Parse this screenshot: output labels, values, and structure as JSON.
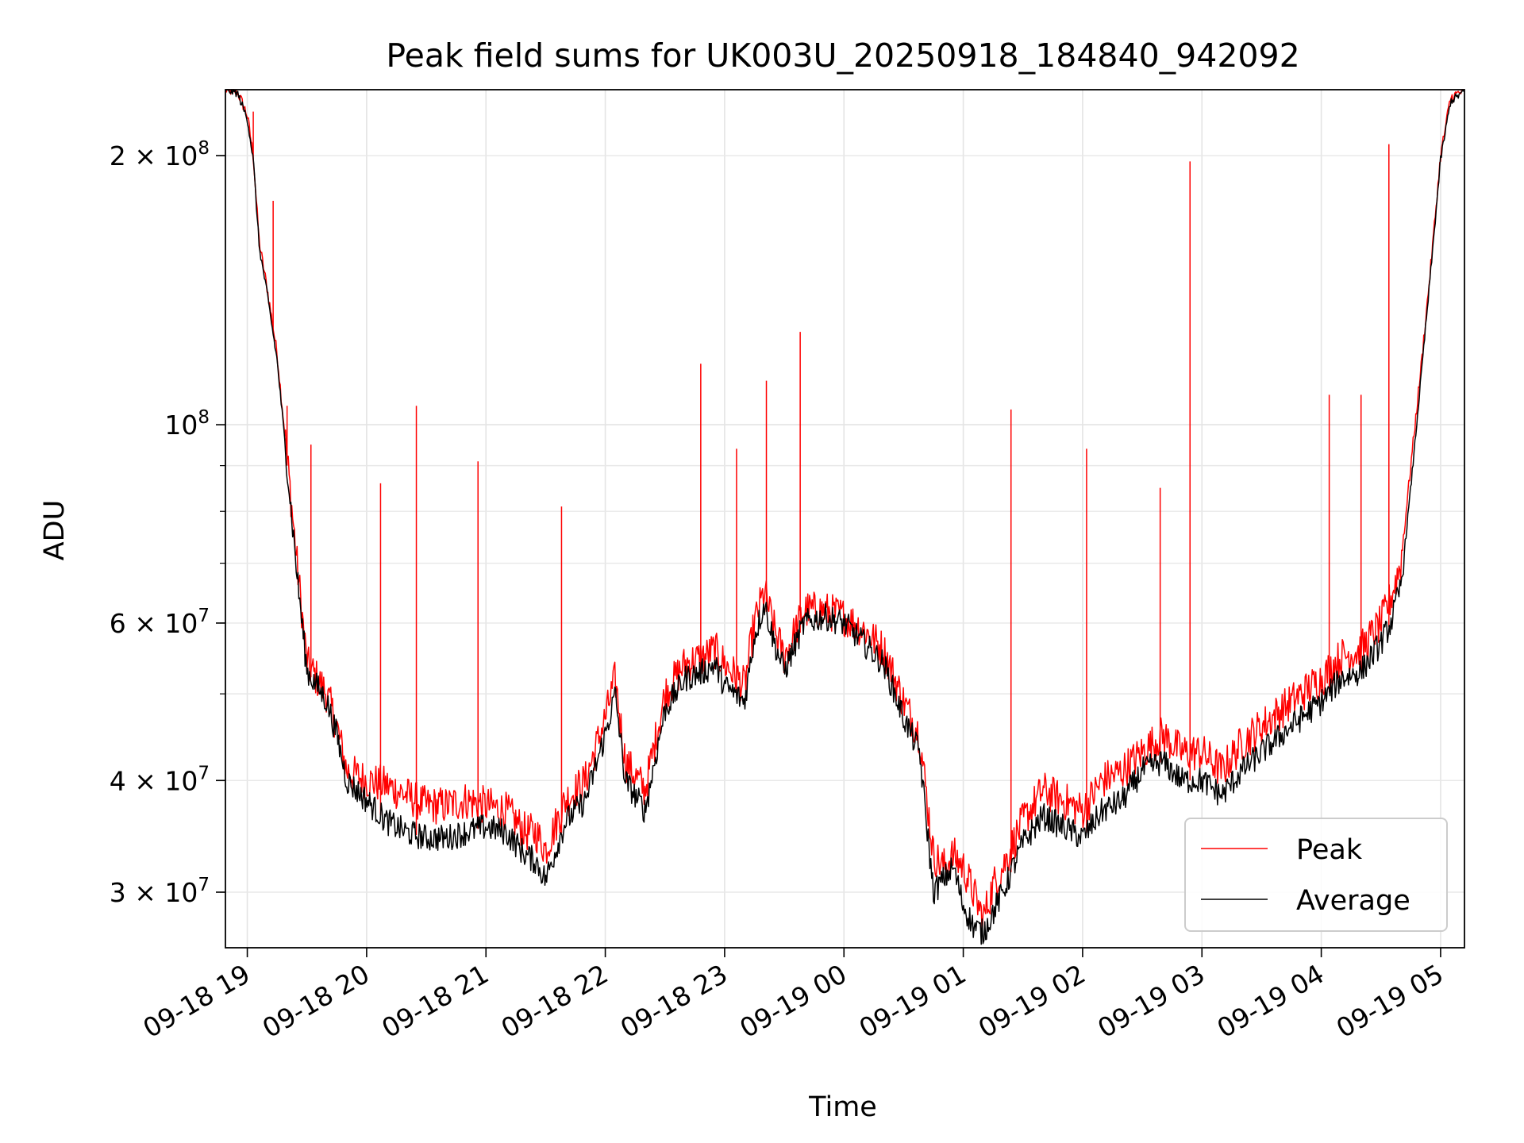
{
  "chart_data": {
    "type": "line",
    "title": "Peak field sums for UK003U_20250918_184840_942092",
    "xlabel": "Time",
    "ylabel": "ADU",
    "yscale": "log",
    "grid": true,
    "legend": "lower-right",
    "xlim": [
      "09-18 18:49",
      "09-19 05:12"
    ],
    "ylim": [
      26000000,
      237000000
    ],
    "xtick_labels": [
      "09-18 19",
      "09-18 20",
      "09-18 21",
      "09-18 22",
      "09-18 23",
      "09-19 00",
      "09-19 01",
      "09-19 02",
      "09-19 03",
      "09-19 04",
      "09-19 05"
    ],
    "ytick_labels": [
      {
        "value": 30000000,
        "label": "3 × 10^7"
      },
      {
        "value": 40000000,
        "label": "4 × 10^7"
      },
      {
        "value": 60000000,
        "label": "6 × 10^7"
      },
      {
        "value": 100000000,
        "label": "10^8"
      },
      {
        "value": 200000000,
        "label": "2 × 10^8"
      }
    ],
    "x": [
      "09-18 18:49",
      "09-18 18:55",
      "09-18 19:00",
      "09-18 19:03",
      "09-18 19:06",
      "09-18 19:10",
      "09-18 19:15",
      "09-18 19:20",
      "09-18 19:25",
      "09-18 19:30",
      "09-18 19:35",
      "09-18 19:40",
      "09-18 19:45",
      "09-18 19:50",
      "09-18 20:00",
      "09-18 20:10",
      "09-18 20:20",
      "09-18 20:30",
      "09-18 20:40",
      "09-18 20:50",
      "09-18 21:00",
      "09-18 21:10",
      "09-18 21:20",
      "09-18 21:25",
      "09-18 21:30",
      "09-18 21:40",
      "09-18 21:50",
      "09-18 22:00",
      "09-18 22:05",
      "09-18 22:10",
      "09-18 22:20",
      "09-18 22:30",
      "09-18 22:40",
      "09-18 22:50",
      "09-18 22:55",
      "09-18 23:00",
      "09-18 23:10",
      "09-18 23:15",
      "09-18 23:20",
      "09-18 23:25",
      "09-18 23:30",
      "09-18 23:40",
      "09-18 23:50",
      "09-19 00:00",
      "09-19 00:10",
      "09-19 00:20",
      "09-19 00:30",
      "09-19 00:38",
      "09-19 00:45",
      "09-19 00:50",
      "09-19 00:55",
      "09-19 01:00",
      "09-19 01:05",
      "09-19 01:10",
      "09-19 01:15",
      "09-19 01:20",
      "09-19 01:25",
      "09-19 01:30",
      "09-19 01:40",
      "09-19 01:50",
      "09-19 02:00",
      "09-19 02:10",
      "09-19 02:20",
      "09-19 02:30",
      "09-19 02:40",
      "09-19 02:50",
      "09-19 03:00",
      "09-19 03:10",
      "09-19 03:20",
      "09-19 03:30",
      "09-19 03:40",
      "09-19 03:50",
      "09-19 04:00",
      "09-19 04:10",
      "09-19 04:20",
      "09-19 04:30",
      "09-19 04:35",
      "09-19 04:40",
      "09-19 04:45",
      "09-19 04:50",
      "09-19 04:55",
      "09-19 05:00",
      "09-19 05:05",
      "09-19 05:12"
    ],
    "series": [
      {
        "name": "Peak",
        "color": "#ff0000",
        "values": [
          237000000,
          236000000,
          222000000,
          200000000,
          160000000,
          142000000,
          120000000,
          92000000,
          70000000,
          54000000,
          52000000,
          50000000,
          46000000,
          41000000,
          40000000,
          39500000,
          38500000,
          37500000,
          37500000,
          38000000,
          37500000,
          37000000,
          35000000,
          35000000,
          33500000,
          38000000,
          40000000,
          47000000,
          52000000,
          42000000,
          39000000,
          50000000,
          54000000,
          55000000,
          56000000,
          54000000,
          51000000,
          60000000,
          65000000,
          59000000,
          55000000,
          62000000,
          62000000,
          61000000,
          59000000,
          56000000,
          49000000,
          45000000,
          33000000,
          32000000,
          33000000,
          32000000,
          30000000,
          28000000,
          30500000,
          32000000,
          34000000,
          36000000,
          39000000,
          38000000,
          37000000,
          40000000,
          41000000,
          43000000,
          45000000,
          43000000,
          43000000,
          41000000,
          44000000,
          46000000,
          48000000,
          50000000,
          52000000,
          55000000,
          56000000,
          60000000,
          64000000,
          70000000,
          90000000,
          115000000,
          150000000,
          200000000,
          232000000,
          237000000
        ],
        "spikes": [
          {
            "x": "09-18 19:03",
            "value": 224000000
          },
          {
            "x": "09-18 19:13",
            "value": 178000000
          },
          {
            "x": "09-18 19:20",
            "value": 105000000
          },
          {
            "x": "09-18 19:32",
            "value": 95000000
          },
          {
            "x": "09-18 20:07",
            "value": 86000000
          },
          {
            "x": "09-18 20:25",
            "value": 105000000
          },
          {
            "x": "09-18 20:56",
            "value": 91000000
          },
          {
            "x": "09-18 21:38",
            "value": 81000000
          },
          {
            "x": "09-18 22:48",
            "value": 117000000
          },
          {
            "x": "09-18 23:06",
            "value": 94000000
          },
          {
            "x": "09-18 23:21",
            "value": 112000000
          },
          {
            "x": "09-18 23:38",
            "value": 127000000
          },
          {
            "x": "09-19 01:24",
            "value": 104000000
          },
          {
            "x": "09-19 02:02",
            "value": 94000000
          },
          {
            "x": "09-19 02:39",
            "value": 85000000
          },
          {
            "x": "09-19 02:54",
            "value": 197000000
          },
          {
            "x": "09-19 04:04",
            "value": 108000000
          },
          {
            "x": "09-19 04:20",
            "value": 108000000
          },
          {
            "x": "09-19 04:34",
            "value": 206000000
          }
        ]
      },
      {
        "name": "Average",
        "color": "#000000",
        "values": [
          237000000,
          235000000,
          220000000,
          198000000,
          158000000,
          140000000,
          118000000,
          90000000,
          68000000,
          53000000,
          51000000,
          49000000,
          45000000,
          40000000,
          38000000,
          36000000,
          35000000,
          34500000,
          34500000,
          35000000,
          35500000,
          35000000,
          33000000,
          32500000,
          31000000,
          36000000,
          38000000,
          45000000,
          50000000,
          40000000,
          37000000,
          48000000,
          52000000,
          53000000,
          54000000,
          51000000,
          49000000,
          58000000,
          63000000,
          57000000,
          53000000,
          60000000,
          61000000,
          60000000,
          57000000,
          54000000,
          47000000,
          43000000,
          30000000,
          31000000,
          32000000,
          29000000,
          27500000,
          27000000,
          28500000,
          30000000,
          32000000,
          34000000,
          36500000,
          35500000,
          34500000,
          37000000,
          38000000,
          41000000,
          42000000,
          40000000,
          40000000,
          38500000,
          41000000,
          43000000,
          45000000,
          47000000,
          49000000,
          52000000,
          53000000,
          57000000,
          60000000,
          66000000,
          85000000,
          112000000,
          148000000,
          198000000,
          230000000,
          236000000
        ]
      }
    ]
  }
}
